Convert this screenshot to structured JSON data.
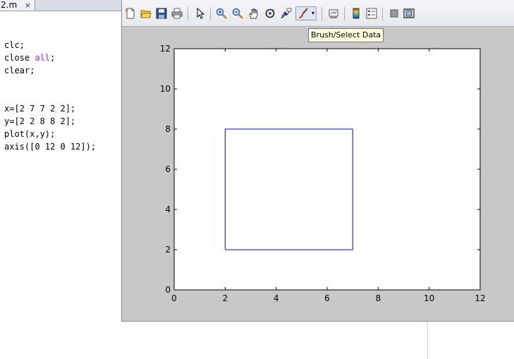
{
  "editor": {
    "tab_label": "2.m",
    "tab_close": "×",
    "code_lines": [
      [
        {
          "t": "clc;",
          "kw": false
        }
      ],
      [
        {
          "t": "close ",
          "kw": false
        },
        {
          "t": "all",
          "kw": true
        },
        {
          "t": ";",
          "kw": false
        }
      ],
      [
        {
          "t": "clear;",
          "kw": false
        }
      ],
      [],
      [],
      [
        {
          "t": "x=[2 7 7 2 2];",
          "kw": false
        }
      ],
      [
        {
          "t": "y=[2 2 8 8 2];",
          "kw": false
        }
      ],
      [
        {
          "t": "plot(x,y);",
          "kw": false
        }
      ],
      [
        {
          "t": "axis([0 12 0 12]);",
          "kw": false
        }
      ]
    ]
  },
  "figure": {
    "toolbar": {
      "buttons": [
        {
          "name": "new-figure-icon"
        },
        {
          "name": "open-file-icon"
        },
        {
          "name": "save-figure-icon"
        },
        {
          "name": "print-figure-icon"
        },
        {
          "name": "edit-plot-arrow-icon"
        },
        {
          "name": "zoom-in-icon"
        },
        {
          "name": "zoom-out-icon"
        },
        {
          "name": "pan-hand-icon"
        },
        {
          "name": "rotate-3d-icon"
        },
        {
          "name": "data-cursor-icon"
        },
        {
          "name": "brush-select-data-icon"
        },
        {
          "name": "brush-dropdown-arrow-icon"
        },
        {
          "name": "link-plot-icon"
        },
        {
          "name": "insert-colorbar-icon"
        },
        {
          "name": "insert-legend-icon"
        },
        {
          "name": "hide-plot-tools-icon"
        },
        {
          "name": "show-plot-tools-icon"
        }
      ],
      "tooltip": "Brush/Select Data"
    },
    "colors": {
      "line": "#0000ff",
      "axes_bg": "#ffffff",
      "figure_bg": "#c8c8c8"
    }
  },
  "chart_data": {
    "type": "line",
    "series": [
      {
        "x": [
          2,
          7,
          7,
          2,
          2
        ],
        "y": [
          2,
          2,
          8,
          8,
          2
        ],
        "color": "#0000ff"
      }
    ],
    "xlim": [
      0,
      12
    ],
    "ylim": [
      0,
      12
    ],
    "xticks": [
      "0",
      "2",
      "4",
      "6",
      "8",
      "10",
      "12"
    ],
    "yticks": [
      "0",
      "2",
      "4",
      "6",
      "8",
      "10",
      "12"
    ],
    "grid": false
  }
}
